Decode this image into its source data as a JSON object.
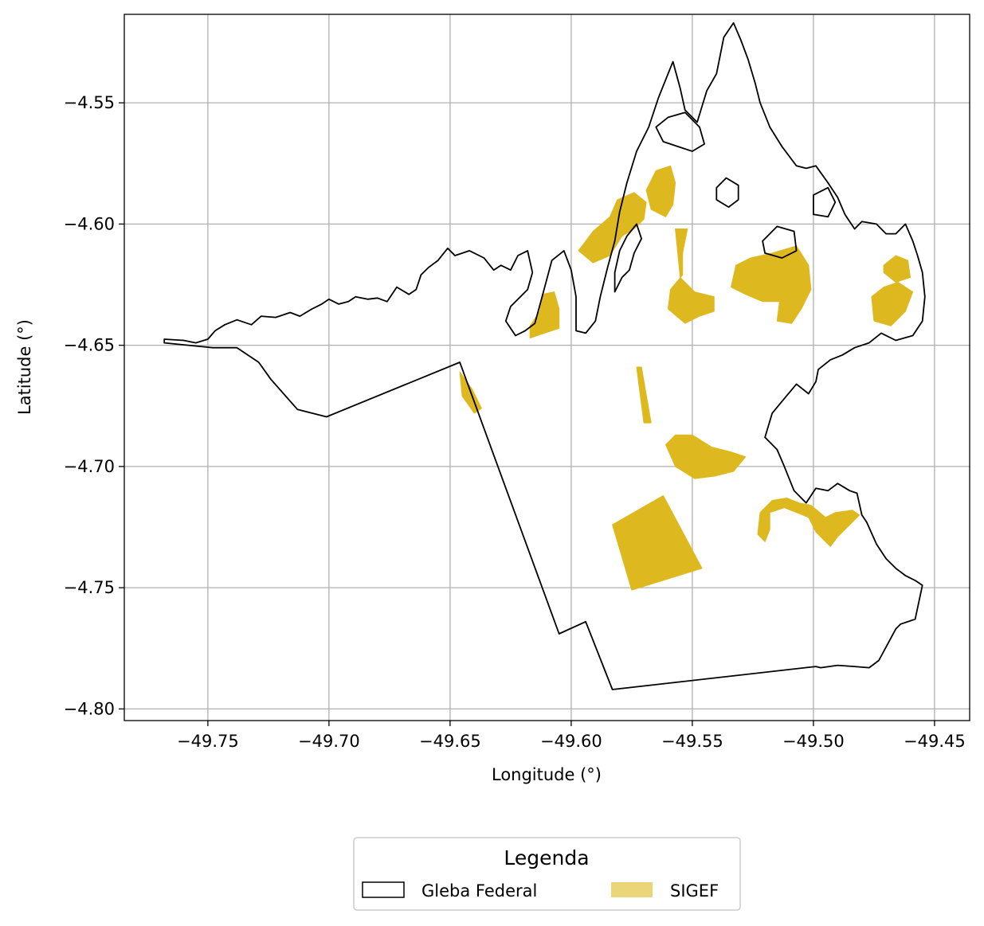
{
  "chart_data": {
    "type": "map",
    "xlabel": "Longitude (°)",
    "ylabel": "Latitude (°)",
    "xlim": [
      -49.7845,
      -49.4355
    ],
    "ylim": [
      -4.8048,
      -4.5135
    ],
    "grid": true,
    "x_ticks": [
      -49.75,
      -49.7,
      -49.65,
      -49.6,
      -49.55,
      -49.5,
      -49.45
    ],
    "x_tick_labels": [
      "−49.75",
      "−49.70",
      "−49.65",
      "−49.60",
      "−49.55",
      "−49.50",
      "−49.45"
    ],
    "y_ticks": [
      -4.55,
      -4.6,
      -4.65,
      -4.7,
      -4.75,
      -4.8
    ],
    "y_tick_labels": [
      "−4.55",
      "−4.60",
      "−4.65",
      "−4.70",
      "−4.75",
      "−4.80"
    ],
    "legend": {
      "title": "Legenda",
      "placement": "bottom-center-outside",
      "entries": [
        {
          "label": "Gleba Federal",
          "style": "outline",
          "color": "#000000"
        },
        {
          "label": "SIGEF",
          "style": "fill",
          "color": "#DDB91F"
        }
      ]
    },
    "colors": {
      "sigef": "#DDB91F",
      "boundary": "#000000",
      "grid": "#b0b0b0"
    },
    "layers": {
      "gleba_federal_outline": [
        [
          -49.768,
          -4.6475
        ],
        [
          -49.76,
          -4.648
        ],
        [
          -49.755,
          -4.649
        ],
        [
          -49.75,
          -4.6475
        ],
        [
          -49.747,
          -4.644
        ],
        [
          -49.743,
          -4.6415
        ],
        [
          -49.738,
          -4.6395
        ],
        [
          -49.732,
          -4.6415
        ],
        [
          -49.728,
          -4.638
        ],
        [
          -49.722,
          -4.6385
        ],
        [
          -49.716,
          -4.6365
        ],
        [
          -49.712,
          -4.638
        ],
        [
          -49.707,
          -4.635
        ],
        [
          -49.703,
          -4.633
        ],
        [
          -49.7,
          -4.631
        ],
        [
          -49.696,
          -4.633
        ],
        [
          -49.692,
          -4.632
        ],
        [
          -49.689,
          -4.63
        ],
        [
          -49.684,
          -4.631
        ],
        [
          -49.68,
          -4.6305
        ],
        [
          -49.676,
          -4.632
        ],
        [
          -49.672,
          -4.626
        ],
        [
          -49.667,
          -4.629
        ],
        [
          -49.664,
          -4.627
        ],
        [
          -49.662,
          -4.621
        ],
        [
          -49.659,
          -4.618
        ],
        [
          -49.655,
          -4.615
        ],
        [
          -49.651,
          -4.61
        ],
        [
          -49.648,
          -4.613
        ],
        [
          -49.642,
          -4.611
        ],
        [
          -49.636,
          -4.614
        ],
        [
          -49.632,
          -4.619
        ],
        [
          -49.629,
          -4.617
        ],
        [
          -49.625,
          -4.619
        ],
        [
          -49.622,
          -4.613
        ],
        [
          -49.618,
          -4.611
        ],
        [
          -49.616,
          -4.62
        ],
        [
          -49.618,
          -4.627
        ],
        [
          -49.625,
          -4.634
        ],
        [
          -49.627,
          -4.64
        ],
        [
          -49.623,
          -4.646
        ],
        [
          -49.619,
          -4.644
        ],
        [
          -49.615,
          -4.641
        ],
        [
          -49.612,
          -4.63
        ],
        [
          -49.608,
          -4.615
        ],
        [
          -49.603,
          -4.611
        ],
        [
          -49.6,
          -4.619
        ],
        [
          -49.598,
          -4.63
        ],
        [
          -49.598,
          -4.644
        ],
        [
          -49.594,
          -4.645
        ],
        [
          -49.59,
          -4.64
        ],
        [
          -49.588,
          -4.63
        ],
        [
          -49.585,
          -4.618
        ],
        [
          -49.582,
          -4.607
        ],
        [
          -49.58,
          -4.595
        ],
        [
          -49.577,
          -4.583
        ],
        [
          -49.573,
          -4.57
        ],
        [
          -49.568,
          -4.56
        ],
        [
          -49.564,
          -4.548
        ],
        [
          -49.56,
          -4.538
        ],
        [
          -49.558,
          -4.533
        ],
        [
          -49.555,
          -4.544
        ],
        [
          -49.553,
          -4.553
        ],
        [
          -49.548,
          -4.558
        ],
        [
          -49.544,
          -4.545
        ],
        [
          -49.54,
          -4.538
        ],
        [
          -49.537,
          -4.523
        ],
        [
          -49.533,
          -4.517
        ],
        [
          -49.53,
          -4.524
        ],
        [
          -49.527,
          -4.532
        ],
        [
          -49.524,
          -4.542
        ],
        [
          -49.522,
          -4.55
        ],
        [
          -49.518,
          -4.56
        ],
        [
          -49.513,
          -4.568
        ],
        [
          -49.507,
          -4.576
        ],
        [
          -49.503,
          -4.577
        ],
        [
          -49.499,
          -4.576
        ],
        [
          -49.494,
          -4.583
        ],
        [
          -49.49,
          -4.589
        ],
        [
          -49.487,
          -4.596
        ],
        [
          -49.483,
          -4.602
        ],
        [
          -49.48,
          -4.599
        ],
        [
          -49.474,
          -4.6
        ],
        [
          -49.47,
          -4.604
        ],
        [
          -49.466,
          -4.604
        ],
        [
          -49.462,
          -4.6
        ],
        [
          -49.459,
          -4.607
        ],
        [
          -49.457,
          -4.613
        ],
        [
          -49.455,
          -4.62
        ],
        [
          -49.454,
          -4.63
        ],
        [
          -49.455,
          -4.64
        ],
        [
          -49.459,
          -4.646
        ],
        [
          -49.466,
          -4.648
        ],
        [
          -49.472,
          -4.645
        ],
        [
          -49.477,
          -4.649
        ],
        [
          -49.483,
          -4.651
        ],
        [
          -49.488,
          -4.654
        ],
        [
          -49.493,
          -4.656
        ],
        [
          -49.498,
          -4.66
        ],
        [
          -49.499,
          -4.665
        ],
        [
          -49.502,
          -4.67
        ],
        [
          -49.507,
          -4.666
        ],
        [
          -49.512,
          -4.672
        ],
        [
          -49.517,
          -4.678
        ],
        [
          -49.52,
          -4.688
        ],
        [
          -49.515,
          -4.693
        ],
        [
          -49.512,
          -4.7
        ],
        [
          -49.508,
          -4.71
        ],
        [
          -49.503,
          -4.715
        ],
        [
          -49.499,
          -4.709
        ],
        [
          -49.494,
          -4.71
        ],
        [
          -49.49,
          -4.707
        ],
        [
          -49.485,
          -4.71
        ],
        [
          -49.482,
          -4.711
        ],
        [
          -49.48,
          -4.72
        ],
        [
          -49.478,
          -4.723
        ],
        [
          -49.474,
          -4.732
        ],
        [
          -49.47,
          -4.738
        ],
        [
          -49.466,
          -4.742
        ],
        [
          -49.462,
          -4.745
        ],
        [
          -49.458,
          -4.747
        ],
        [
          -49.455,
          -4.749
        ],
        [
          -49.458,
          -4.763
        ],
        [
          -49.464,
          -4.765
        ],
        [
          -49.466,
          -4.767
        ],
        [
          -49.473,
          -4.78
        ],
        [
          -49.477,
          -4.783
        ],
        [
          -49.483,
          -4.7825
        ],
        [
          -49.49,
          -4.782
        ],
        [
          -49.497,
          -4.783
        ],
        [
          -49.499,
          -4.7825
        ],
        [
          -49.583,
          -4.792
        ],
        [
          -49.594,
          -4.764
        ],
        [
          -49.605,
          -4.769
        ],
        [
          -49.646,
          -4.657
        ],
        [
          -49.701,
          -4.6795
        ],
        [
          -49.713,
          -4.6765
        ],
        [
          -49.724,
          -4.664
        ],
        [
          -49.729,
          -4.657
        ],
        [
          -49.738,
          -4.651
        ],
        [
          -49.748,
          -4.651
        ],
        [
          -49.768,
          -4.649
        ],
        [
          -49.768,
          -4.6475
        ]
      ],
      "river_islands": [
        [
          [
            -49.582,
            -4.628
          ],
          [
            -49.579,
            -4.622
          ],
          [
            -49.576,
            -4.619
          ],
          [
            -49.574,
            -4.612
          ],
          [
            -49.571,
            -4.606
          ],
          [
            -49.573,
            -4.6
          ],
          [
            -49.577,
            -4.605
          ],
          [
            -49.58,
            -4.611
          ],
          [
            -49.582,
            -4.62
          ],
          [
            -49.582,
            -4.628
          ]
        ],
        [
          [
            -49.565,
            -4.56
          ],
          [
            -49.56,
            -4.556
          ],
          [
            -49.553,
            -4.554
          ],
          [
            -49.547,
            -4.56
          ],
          [
            -49.545,
            -4.567
          ],
          [
            -49.55,
            -4.57
          ],
          [
            -49.556,
            -4.568
          ],
          [
            -49.562,
            -4.566
          ],
          [
            -49.565,
            -4.56
          ]
        ],
        [
          [
            -49.54,
            -4.585
          ],
          [
            -49.536,
            -4.581
          ],
          [
            -49.531,
            -4.584
          ],
          [
            -49.531,
            -4.59
          ],
          [
            -49.535,
            -4.593
          ],
          [
            -49.54,
            -4.59
          ],
          [
            -49.54,
            -4.585
          ]
        ],
        [
          [
            -49.5,
            -4.588
          ],
          [
            -49.494,
            -4.585
          ],
          [
            -49.491,
            -4.591
          ],
          [
            -49.494,
            -4.597
          ],
          [
            -49.5,
            -4.596
          ],
          [
            -49.5,
            -4.588
          ]
        ],
        [
          [
            -49.521,
            -4.607
          ],
          [
            -49.515,
            -4.601
          ],
          [
            -49.508,
            -4.603
          ],
          [
            -49.507,
            -4.611
          ],
          [
            -49.513,
            -4.614
          ],
          [
            -49.52,
            -4.612
          ],
          [
            -49.521,
            -4.607
          ]
        ]
      ],
      "sigef_parcels": [
        [
          [
            -49.612,
            -4.629
          ],
          [
            -49.607,
            -4.628
          ],
          [
            -49.605,
            -4.635
          ],
          [
            -49.605,
            -4.643
          ],
          [
            -49.611,
            -4.645
          ],
          [
            -49.617,
            -4.647
          ],
          [
            -49.617,
            -4.642
          ],
          [
            -49.613,
            -4.636
          ],
          [
            -49.612,
            -4.629
          ]
        ],
        [
          [
            -49.581,
            -4.59
          ],
          [
            -49.574,
            -4.587
          ],
          [
            -49.569,
            -4.591
          ],
          [
            -49.57,
            -4.598
          ],
          [
            -49.574,
            -4.602
          ],
          [
            -49.579,
            -4.605
          ],
          [
            -49.584,
            -4.613
          ],
          [
            -49.591,
            -4.616
          ],
          [
            -49.597,
            -4.611
          ],
          [
            -49.591,
            -4.603
          ],
          [
            -49.584,
            -4.597
          ],
          [
            -49.581,
            -4.59
          ]
        ],
        [
          [
            -49.565,
            -4.578
          ],
          [
            -49.559,
            -4.576
          ],
          [
            -49.557,
            -4.583
          ],
          [
            -49.558,
            -4.592
          ],
          [
            -49.561,
            -4.597
          ],
          [
            -49.567,
            -4.594
          ],
          [
            -49.569,
            -4.586
          ],
          [
            -49.565,
            -4.578
          ]
        ],
        [
          [
            -49.557,
            -4.602
          ],
          [
            -49.552,
            -4.602
          ],
          [
            -49.554,
            -4.612
          ],
          [
            -49.554,
            -4.621
          ],
          [
            -49.559,
            -4.627
          ],
          [
            -49.56,
            -4.635
          ],
          [
            -49.553,
            -4.641
          ],
          [
            -49.547,
            -4.638
          ],
          [
            -49.541,
            -4.636
          ],
          [
            -49.541,
            -4.63
          ],
          [
            -49.549,
            -4.628
          ],
          [
            -49.555,
            -4.622
          ],
          [
            -49.557,
            -4.602
          ]
        ],
        [
          [
            -49.526,
            -4.614
          ],
          [
            -49.517,
            -4.612
          ],
          [
            -49.507,
            -4.609
          ],
          [
            -49.502,
            -4.617
          ],
          [
            -49.501,
            -4.627
          ],
          [
            -49.505,
            -4.635
          ],
          [
            -49.509,
            -4.641
          ],
          [
            -49.515,
            -4.64
          ],
          [
            -49.514,
            -4.632
          ],
          [
            -49.521,
            -4.632
          ],
          [
            -49.528,
            -4.629
          ],
          [
            -49.534,
            -4.626
          ],
          [
            -49.532,
            -4.617
          ],
          [
            -49.526,
            -4.614
          ]
        ],
        [
          [
            -49.476,
            -4.63
          ],
          [
            -49.471,
            -4.626
          ],
          [
            -49.465,
            -4.624
          ],
          [
            -49.459,
            -4.628
          ],
          [
            -49.462,
            -4.636
          ],
          [
            -49.468,
            -4.642
          ],
          [
            -49.475,
            -4.64
          ],
          [
            -49.476,
            -4.63
          ]
        ],
        [
          [
            -49.471,
            -4.617
          ],
          [
            -49.466,
            -4.613
          ],
          [
            -49.461,
            -4.615
          ],
          [
            -49.46,
            -4.622
          ],
          [
            -49.466,
            -4.624
          ],
          [
            -49.471,
            -4.62
          ],
          [
            -49.471,
            -4.617
          ]
        ],
        [
          [
            -49.646,
            -4.661
          ],
          [
            -49.641,
            -4.668
          ],
          [
            -49.637,
            -4.676
          ],
          [
            -49.64,
            -4.678
          ],
          [
            -49.645,
            -4.671
          ],
          [
            -49.646,
            -4.661
          ]
        ],
        [
          [
            -49.573,
            -4.659
          ],
          [
            -49.571,
            -4.659
          ],
          [
            -49.567,
            -4.682
          ],
          [
            -49.57,
            -4.682
          ],
          [
            -49.573,
            -4.659
          ]
        ],
        [
          [
            -49.557,
            -4.687
          ],
          [
            -49.55,
            -4.687
          ],
          [
            -49.542,
            -4.692
          ],
          [
            -49.534,
            -4.694
          ],
          [
            -49.528,
            -4.696
          ],
          [
            -49.533,
            -4.702
          ],
          [
            -49.541,
            -4.704
          ],
          [
            -49.549,
            -4.705
          ],
          [
            -49.557,
            -4.7
          ],
          [
            -49.561,
            -4.691
          ],
          [
            -49.557,
            -4.687
          ]
        ],
        [
          [
            -49.562,
            -4.712
          ],
          [
            -49.583,
            -4.724
          ],
          [
            -49.575,
            -4.751
          ],
          [
            -49.546,
            -4.742
          ],
          [
            -49.562,
            -4.712
          ]
        ],
        [
          [
            -49.518,
            -4.719
          ],
          [
            -49.512,
            -4.717
          ],
          [
            -49.507,
            -4.719
          ],
          [
            -49.502,
            -4.721
          ],
          [
            -49.499,
            -4.727
          ],
          [
            -49.493,
            -4.733
          ],
          [
            -49.49,
            -4.729
          ],
          [
            -49.487,
            -4.726
          ],
          [
            -49.481,
            -4.72
          ],
          [
            -49.484,
            -4.718
          ],
          [
            -49.491,
            -4.719
          ],
          [
            -49.495,
            -4.721
          ],
          [
            -49.501,
            -4.716
          ],
          [
            -49.506,
            -4.715
          ],
          [
            -49.511,
            -4.713
          ],
          [
            -49.517,
            -4.714
          ],
          [
            -49.522,
            -4.719
          ],
          [
            -49.523,
            -4.728
          ],
          [
            -49.52,
            -4.731
          ],
          [
            -49.518,
            -4.726
          ],
          [
            -49.518,
            -4.719
          ]
        ]
      ]
    }
  }
}
